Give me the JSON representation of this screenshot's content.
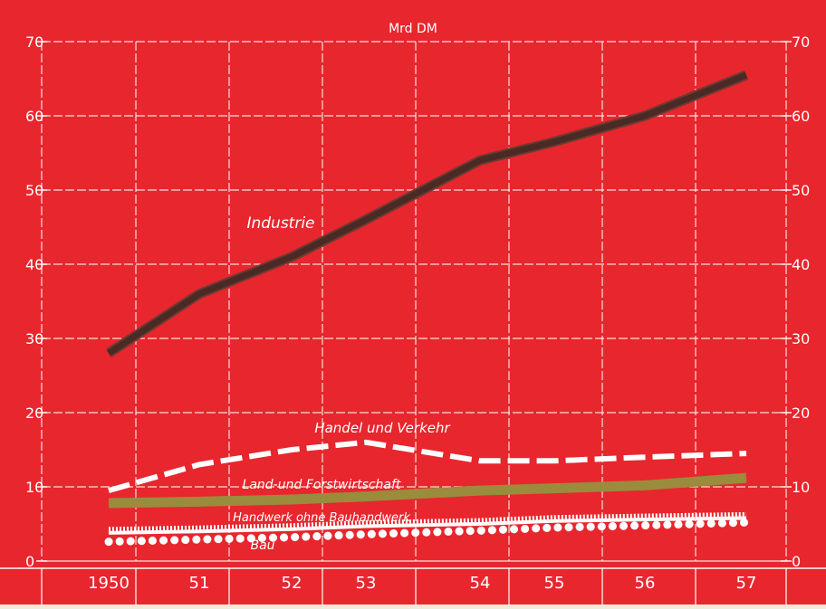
{
  "chart_data": {
    "type": "line",
    "unit_label": "Mrd DM",
    "categories": [
      "1950",
      "51",
      "52",
      "53",
      "54",
      "55",
      "56",
      "57"
    ],
    "ylim": [
      0,
      70
    ],
    "y_ticks": [
      0,
      10,
      20,
      30,
      40,
      50,
      60,
      70
    ],
    "grid": true,
    "series": [
      {
        "name": "Industrie",
        "style": "solid-dark",
        "color": "#4a2a25",
        "values": [
          28,
          36,
          41,
          46,
          54,
          56.5,
          60,
          65.5
        ]
      },
      {
        "name": "Handel und Verkehr",
        "style": "dashed",
        "color": "#ffffff",
        "values": [
          9.5,
          13,
          15,
          16,
          13.5,
          13.5,
          14,
          14.5
        ]
      },
      {
        "name": "Land-und Forstwirtschaft",
        "style": "solid-olive",
        "color": "#9a8c3c",
        "values": [
          7.8,
          8.0,
          8.3,
          8.7,
          9.5,
          9.8,
          10.2,
          11.2
        ]
      },
      {
        "name": "Handwerk ohne Bauhandwerk",
        "style": "hatched",
        "color": "#ffffff",
        "values": [
          3.8,
          4.0,
          4.3,
          4.7,
          5.0,
          5.4,
          5.6,
          5.8
        ]
      },
      {
        "name": "Bau",
        "style": "dotted",
        "color": "#ffffff",
        "values": [
          2.6,
          2.9,
          3.2,
          3.6,
          4.1,
          4.5,
          4.8,
          5.2
        ]
      }
    ]
  },
  "colors": {
    "background": "#e8262d",
    "frame": "#f1ebd9",
    "grid": "#ffffff"
  }
}
